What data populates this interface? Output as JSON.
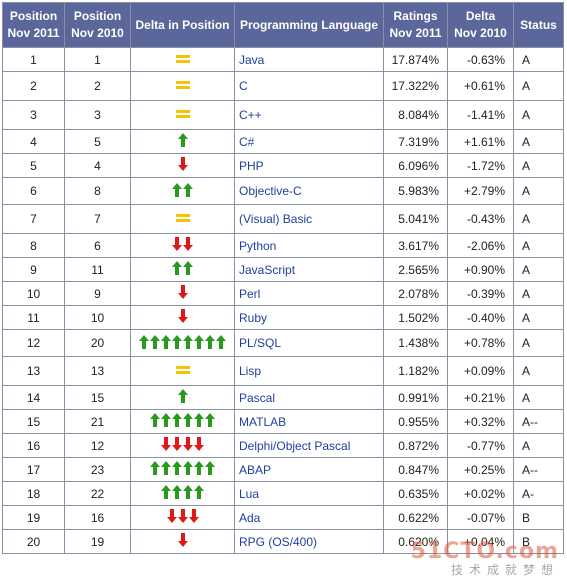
{
  "colors": {
    "header_bg": "#5b669b",
    "header_text": "#ffffff",
    "link": "#1f3f9e",
    "equal": "#f5c400",
    "up": "#2a9a1f",
    "down": "#e01818"
  },
  "table": {
    "headers": {
      "pos_2011": "Position\nNov 2011",
      "pos_2010": "Position\nNov 2010",
      "delta_pos": "Delta in Position",
      "language": "Programming Language",
      "ratings": "Ratings\nNov 2011",
      "delta_rating": "Delta\nNov 2010",
      "status": "Status"
    },
    "rows": [
      {
        "pos2011": "1",
        "pos2010": "1",
        "delta": {
          "dir": "equal",
          "count": 1
        },
        "language": "Java",
        "rating": "17.874%",
        "delta_rating": "-0.63%",
        "status": "A"
      },
      {
        "pos2011": "2",
        "pos2010": "2",
        "delta": {
          "dir": "equal",
          "count": 1
        },
        "language": "C",
        "rating": "17.322%",
        "delta_rating": "+0.61%",
        "status": "A"
      },
      {
        "pos2011": "3",
        "pos2010": "3",
        "delta": {
          "dir": "equal",
          "count": 1
        },
        "language": "C++",
        "rating": "8.084%",
        "delta_rating": "-1.41%",
        "status": "A"
      },
      {
        "pos2011": "4",
        "pos2010": "5",
        "delta": {
          "dir": "up",
          "count": 1
        },
        "language": "C#",
        "rating": "7.319%",
        "delta_rating": "+1.61%",
        "status": "A"
      },
      {
        "pos2011": "5",
        "pos2010": "4",
        "delta": {
          "dir": "down",
          "count": 1
        },
        "language": "PHP",
        "rating": "6.096%",
        "delta_rating": "-1.72%",
        "status": "A"
      },
      {
        "pos2011": "6",
        "pos2010": "8",
        "delta": {
          "dir": "up",
          "count": 2
        },
        "language": "Objective-C",
        "rating": "5.983%",
        "delta_rating": "+2.79%",
        "status": "A"
      },
      {
        "pos2011": "7",
        "pos2010": "7",
        "delta": {
          "dir": "equal",
          "count": 1
        },
        "language": "(Visual) Basic",
        "rating": "5.041%",
        "delta_rating": "-0.43%",
        "status": "A"
      },
      {
        "pos2011": "8",
        "pos2010": "6",
        "delta": {
          "dir": "down",
          "count": 2
        },
        "language": "Python",
        "rating": "3.617%",
        "delta_rating": "-2.06%",
        "status": "A"
      },
      {
        "pos2011": "9",
        "pos2010": "11",
        "delta": {
          "dir": "up",
          "count": 2
        },
        "language": "JavaScript",
        "rating": "2.565%",
        "delta_rating": "+0.90%",
        "status": "A"
      },
      {
        "pos2011": "10",
        "pos2010": "9",
        "delta": {
          "dir": "down",
          "count": 1
        },
        "language": "Perl",
        "rating": "2.078%",
        "delta_rating": "-0.39%",
        "status": "A"
      },
      {
        "pos2011": "11",
        "pos2010": "10",
        "delta": {
          "dir": "down",
          "count": 1
        },
        "language": "Ruby",
        "rating": "1.502%",
        "delta_rating": "-0.40%",
        "status": "A"
      },
      {
        "pos2011": "12",
        "pos2010": "20",
        "delta": {
          "dir": "up",
          "count": 8
        },
        "language": "PL/SQL",
        "rating": "1.438%",
        "delta_rating": "+0.78%",
        "status": "A"
      },
      {
        "pos2011": "13",
        "pos2010": "13",
        "delta": {
          "dir": "equal",
          "count": 1
        },
        "language": "Lisp",
        "rating": "1.182%",
        "delta_rating": "+0.09%",
        "status": "A"
      },
      {
        "pos2011": "14",
        "pos2010": "15",
        "delta": {
          "dir": "up",
          "count": 1
        },
        "language": "Pascal",
        "rating": "0.991%",
        "delta_rating": "+0.21%",
        "status": "A"
      },
      {
        "pos2011": "15",
        "pos2010": "21",
        "delta": {
          "dir": "up",
          "count": 6
        },
        "language": "MATLAB",
        "rating": "0.955%",
        "delta_rating": "+0.32%",
        "status": "A--"
      },
      {
        "pos2011": "16",
        "pos2010": "12",
        "delta": {
          "dir": "down",
          "count": 4
        },
        "language": "Delphi/Object Pascal",
        "rating": "0.872%",
        "delta_rating": "-0.77%",
        "status": "A"
      },
      {
        "pos2011": "17",
        "pos2010": "23",
        "delta": {
          "dir": "up",
          "count": 6
        },
        "language": "ABAP",
        "rating": "0.847%",
        "delta_rating": "+0.25%",
        "status": "A--"
      },
      {
        "pos2011": "18",
        "pos2010": "22",
        "delta": {
          "dir": "up",
          "count": 4
        },
        "language": "Lua",
        "rating": "0.635%",
        "delta_rating": "+0.02%",
        "status": "A-"
      },
      {
        "pos2011": "19",
        "pos2010": "16",
        "delta": {
          "dir": "down",
          "count": 3
        },
        "language": "Ada",
        "rating": "0.622%",
        "delta_rating": "-0.07%",
        "status": "B"
      },
      {
        "pos2011": "20",
        "pos2010": "19",
        "delta": {
          "dir": "down",
          "count": 1
        },
        "language": "RPG (OS/400)",
        "rating": "0.620%",
        "delta_rating": "+0.04%",
        "status": "B"
      }
    ]
  },
  "watermark": {
    "site": "51CTO.com",
    "slogan": "技术成就梦想"
  }
}
